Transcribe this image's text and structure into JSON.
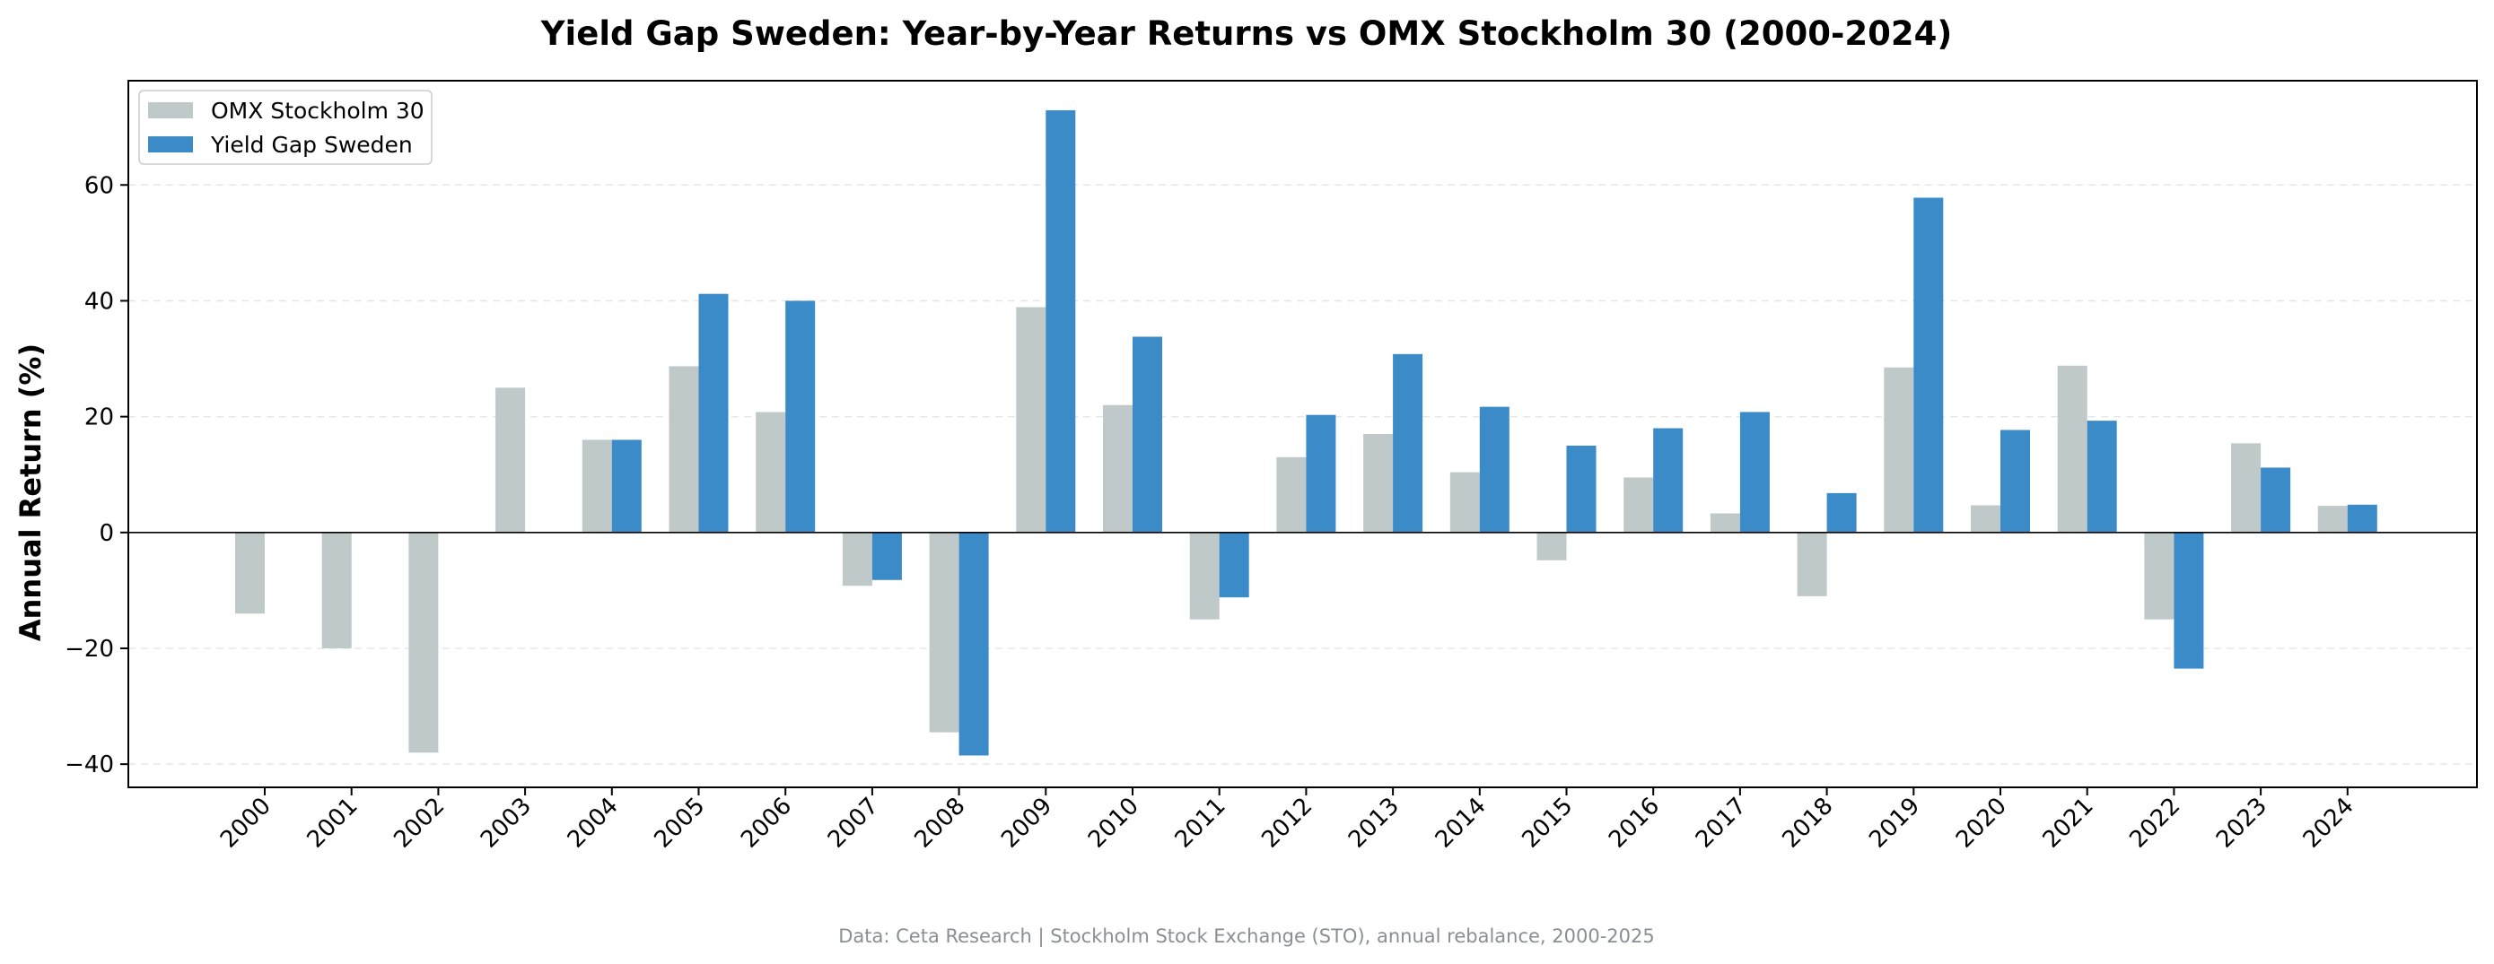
{
  "chart_data": {
    "type": "bar",
    "title": "Yield Gap Sweden: Year-by-Year Returns vs OMX Stockholm 30 (2000-2024)",
    "xlabel": "",
    "ylabel": "Annual Return (%)",
    "ylim": [
      -44,
      78
    ],
    "yticks": [
      -40,
      -20,
      0,
      20,
      40,
      60
    ],
    "ytick_labels": [
      "−40",
      "−20",
      "0",
      "20",
      "40",
      "60"
    ],
    "grid": "horizontal dashed",
    "legend_position": "top-left",
    "categories": [
      "2000",
      "2001",
      "2002",
      "2003",
      "2004",
      "2005",
      "2006",
      "2007",
      "2008",
      "2009",
      "2010",
      "2011",
      "2012",
      "2013",
      "2014",
      "2015",
      "2016",
      "2017",
      "2018",
      "2019",
      "2020",
      "2021",
      "2022",
      "2023",
      "2024"
    ],
    "series": [
      {
        "name": "OMX Stockholm 30",
        "color": "#bfc9ca",
        "values": [
          -14,
          -20,
          -38,
          25,
          16,
          28.7,
          20.8,
          -9.2,
          -34.5,
          38.9,
          22,
          -15,
          13,
          17,
          10.4,
          -4.8,
          9.5,
          3.3,
          -11,
          28.5,
          4.7,
          28.8,
          -15,
          15.4,
          4.6
        ]
      },
      {
        "name": "Yield Gap Sweden",
        "color": "#3a8bc8",
        "values": [
          null,
          null,
          null,
          null,
          16,
          41.2,
          40,
          -8.2,
          -38.5,
          72.9,
          33.8,
          -11.2,
          20.3,
          30.8,
          21.7,
          15,
          18,
          20.8,
          6.8,
          57.8,
          17.7,
          19.3,
          -23.5,
          11.2,
          4.8
        ]
      }
    ]
  },
  "footer": {
    "text": "Data: Ceta Research | Stockholm Stock Exchange (STO), annual rebalance, 2000-2025"
  }
}
